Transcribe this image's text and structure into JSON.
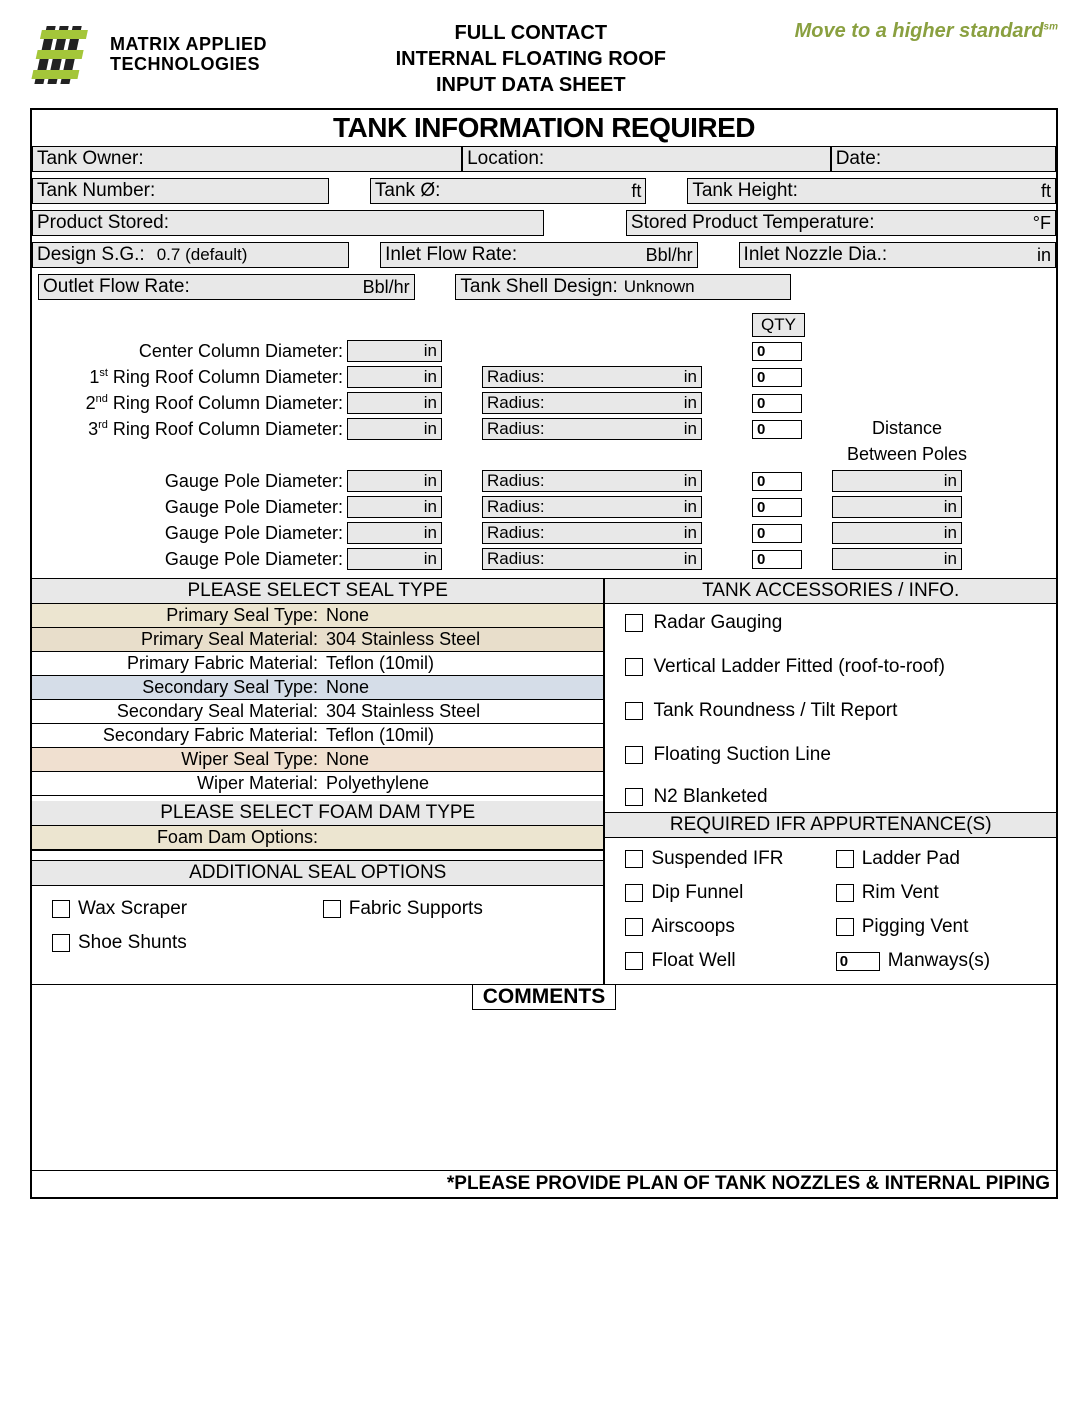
{
  "header": {
    "company_line1": "MATRIX APPLIED",
    "company_line2": "TECHNOLOGIES",
    "title_line1": "FULL CONTACT",
    "title_line2": "INTERNAL FLOATING ROOF",
    "title_line3": "INPUT DATA SHEET",
    "tagline": "Move to a higher standard",
    "tagline_mark": "sm"
  },
  "main_title": "TANK INFORMATION REQUIRED",
  "fields": {
    "tank_owner": "Tank Owner:",
    "location": "Location:",
    "date": "Date:",
    "tank_number": "Tank Number:",
    "tank_dia": "Tank Ø:",
    "tank_height": "Tank Height:",
    "product_stored": "Product Stored:",
    "stored_temp": "Stored Product Temperature:",
    "design_sg_label": "Design S.G.:",
    "design_sg_value": "0.7 (default)",
    "inlet_flow": "Inlet Flow Rate:",
    "inlet_nozzle": "Inlet Nozzle Dia.:",
    "outlet_flow": "Outlet Flow Rate:",
    "shell_design_label": "Tank Shell Design:",
    "shell_design_value": "Unknown"
  },
  "units": {
    "ft": "ft",
    "degf": "°F",
    "bblhr": "Bbl/hr",
    "in": "in"
  },
  "columns": {
    "qty_header": "QTY",
    "center": "Center Column Diameter:",
    "ring1_pre": "1",
    "ring1_ord": "st",
    "ring1_post": " Ring Roof Column Diameter:",
    "ring2_pre": "2",
    "ring2_ord": "nd",
    "ring2_post": " Ring Roof Column Diameter:",
    "ring3_pre": "3",
    "ring3_ord": "rd",
    "ring3_post": " Ring Roof Column Diameter:",
    "radius": "Radius:",
    "gauge": "Gauge Pole Diameter:",
    "dist_l1": "Distance",
    "dist_l2": "Between Poles",
    "qty_vals": [
      "0",
      "0",
      "0",
      "0",
      "0",
      "0",
      "0",
      "0"
    ]
  },
  "seal": {
    "title": "PLEASE SELECT SEAL TYPE",
    "rows": [
      {
        "l": "Primary Seal Type:",
        "r": "None",
        "bg": "bg-tan1"
      },
      {
        "l": "Primary Seal Material:",
        "r": "304 Stainless Steel",
        "bg": "bg-tan2"
      },
      {
        "l": "Primary Fabric Material:",
        "r": "Teflon (10mil)",
        "bg": ""
      },
      {
        "l": "Secondary Seal Type:",
        "r": "None",
        "bg": "bg-blue"
      },
      {
        "l": "Secondary Seal Material:",
        "r": "304 Stainless Steel",
        "bg": ""
      },
      {
        "l": "Secondary Fabric Material:",
        "r": "Teflon (10mil)",
        "bg": ""
      },
      {
        "l": "Wiper Seal Type:",
        "r": "None",
        "bg": "bg-peach"
      },
      {
        "l": "Wiper Material:",
        "r": "Polyethylene",
        "bg": ""
      }
    ]
  },
  "foam": {
    "title": "PLEASE SELECT FOAM DAM TYPE",
    "label": "Foam Dam Options:"
  },
  "addl": {
    "title": "ADDITIONAL SEAL OPTIONS",
    "opts": [
      "Wax Scraper",
      "Fabric Supports",
      "Shoe Shunts"
    ]
  },
  "accessories": {
    "title": "TANK ACCESSORIES / INFO.",
    "items": [
      "Radar Gauging",
      "Vertical Ladder Fitted (roof-to-roof)",
      "Tank Roundness / Tilt Report",
      "Floating Suction Line",
      "N2 Blanketed"
    ]
  },
  "appurt": {
    "title": "REQUIRED IFR APPURTENANCE(S)",
    "items": [
      "Suspended IFR",
      "Ladder Pad",
      "Dip Funnel",
      "Rim Vent",
      "Airscoops",
      "Pigging Vent",
      "Float Well"
    ],
    "manways_qty": "0",
    "manways_label": "Manways(s)"
  },
  "comments_title": "COMMENTS",
  "footer_note": "*PLEASE PROVIDE PLAN OF TANK NOZZLES & INTERNAL PIPING"
}
